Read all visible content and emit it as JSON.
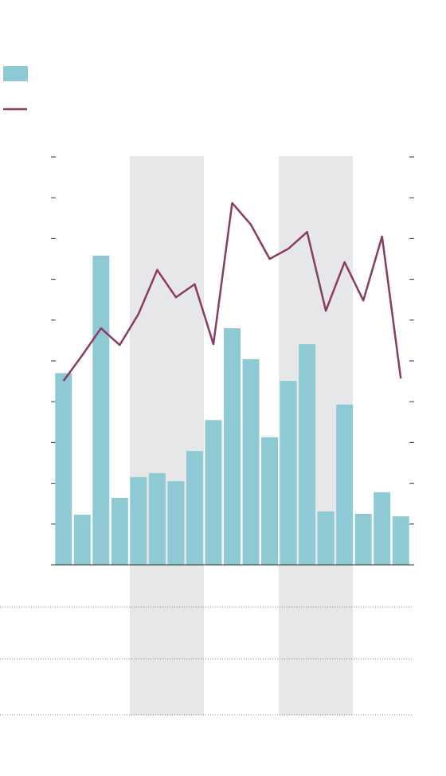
{
  "chart_data": {
    "type": "bar-line",
    "categories": [
      null,
      null,
      null,
      null,
      null,
      null,
      null,
      null,
      null,
      null,
      null,
      null,
      null,
      null,
      null,
      null,
      null,
      null,
      null
    ],
    "series": [
      {
        "name": null,
        "type": "bar",
        "color": "#8ecad3",
        "values": [
          4.7,
          1.23,
          7.58,
          1.64,
          2.15,
          2.25,
          2.05,
          2.79,
          3.55,
          5.8,
          5.04,
          3.13,
          4.51,
          5.41,
          1.31,
          3.93,
          1.25,
          1.78,
          1.19
        ]
      },
      {
        "name": null,
        "type": "line",
        "axis": "y2",
        "color": "#8b3a62",
        "values": [
          4.51,
          5.14,
          5.8,
          5.39,
          6.15,
          7.23,
          6.56,
          6.88,
          5.41,
          8.87,
          8.34,
          7.5,
          7.75,
          8.16,
          6.23,
          7.42,
          6.48,
          8.05,
          4.57
        ]
      }
    ],
    "ylim": [
      0,
      10
    ],
    "yticks": [
      0,
      1,
      2,
      3,
      4,
      5,
      6,
      7,
      8,
      9,
      10
    ],
    "y2lim": [
      0,
      10
    ],
    "y2ticks": [
      0,
      1,
      2,
      3,
      4,
      5,
      6,
      7,
      8,
      9,
      10
    ],
    "grid": false
  }
}
